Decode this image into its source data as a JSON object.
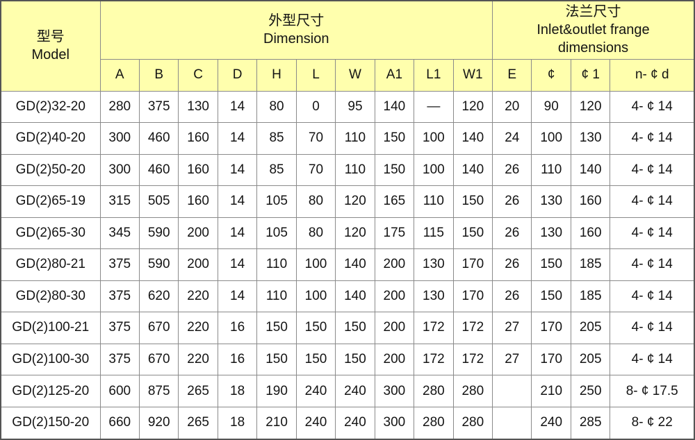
{
  "colors": {
    "header_bg": "#ffffad",
    "row_bg": "#ffffff",
    "border": "#8a8a8a",
    "outer_border": "#555555",
    "text": "#141414"
  },
  "table": {
    "header": {
      "model": "型号\nModel",
      "dimension_group": "外型尺寸\nDimension",
      "flange_group": "法兰尺寸\nInlet&outlet frange\ndimensions",
      "columns": [
        "A",
        "B",
        "C",
        "D",
        "H",
        "L",
        "W",
        "A1",
        "L1",
        "W1",
        "E",
        "¢",
        "¢ 1",
        "n- ¢ d"
      ]
    },
    "rows": [
      [
        "GD(2)32-20",
        "280",
        "375",
        "130",
        "14",
        "80",
        "0",
        "95",
        "140",
        "—",
        "120",
        "20",
        "90",
        "120",
        "4- ¢ 14"
      ],
      [
        "GD(2)40-20",
        "300",
        "460",
        "160",
        "14",
        "85",
        "70",
        "110",
        "150",
        "100",
        "140",
        "24",
        "100",
        "130",
        "4- ¢ 14"
      ],
      [
        "GD(2)50-20",
        "300",
        "460",
        "160",
        "14",
        "85",
        "70",
        "110",
        "150",
        "100",
        "140",
        "26",
        "110",
        "140",
        "4- ¢ 14"
      ],
      [
        "GD(2)65-19",
        "315",
        "505",
        "160",
        "14",
        "105",
        "80",
        "120",
        "165",
        "110",
        "150",
        "26",
        "130",
        "160",
        "4- ¢ 14"
      ],
      [
        "GD(2)65-30",
        "345",
        "590",
        "200",
        "14",
        "105",
        "80",
        "120",
        "175",
        "115",
        "150",
        "26",
        "130",
        "160",
        "4- ¢ 14"
      ],
      [
        "GD(2)80-21",
        "375",
        "590",
        "200",
        "14",
        "110",
        "100",
        "140",
        "200",
        "130",
        "170",
        "26",
        "150",
        "185",
        "4- ¢ 14"
      ],
      [
        "GD(2)80-30",
        "375",
        "620",
        "220",
        "14",
        "110",
        "100",
        "140",
        "200",
        "130",
        "170",
        "26",
        "150",
        "185",
        "4- ¢ 14"
      ],
      [
        "GD(2)100-21",
        "375",
        "670",
        "220",
        "16",
        "150",
        "150",
        "150",
        "200",
        "172",
        "172",
        "27",
        "170",
        "205",
        "4- ¢ 14"
      ],
      [
        "GD(2)100-30",
        "375",
        "670",
        "220",
        "16",
        "150",
        "150",
        "150",
        "200",
        "172",
        "172",
        "27",
        "170",
        "205",
        "4- ¢ 14"
      ],
      [
        "GD(2)125-20",
        "600",
        "875",
        "265",
        "18",
        "190",
        "240",
        "240",
        "300",
        "280",
        "280",
        "",
        "210",
        "250",
        "8- ¢ 17.5"
      ],
      [
        "GD(2)150-20",
        "660",
        "920",
        "265",
        "18",
        "210",
        "240",
        "240",
        "300",
        "280",
        "280",
        "",
        "240",
        "285",
        "8- ¢ 22"
      ]
    ]
  }
}
